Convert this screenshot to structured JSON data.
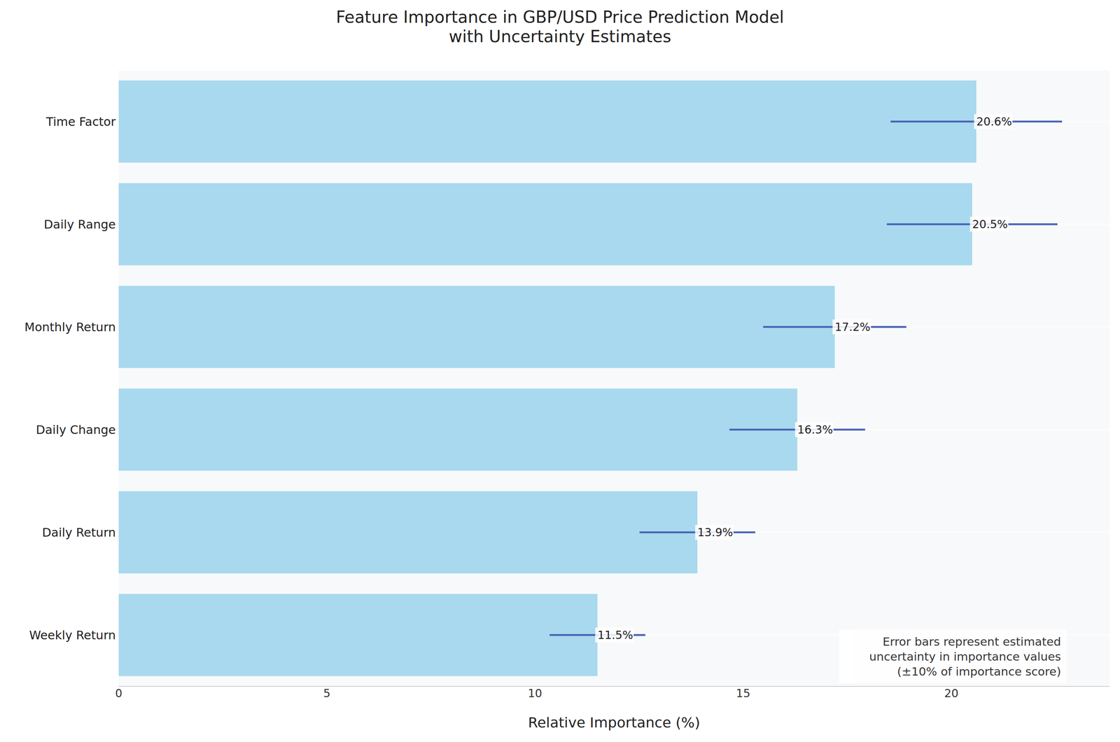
{
  "chart_data": {
    "type": "bar",
    "title": "Feature Importance in GBP/USD Price Prediction Model\nwith Uncertainty Estimates",
    "x_label": "Relative Importance (%)",
    "categories": [
      "Time Factor",
      "Daily Range",
      "Monthly Return",
      "Daily Change",
      "Daily Return",
      "Weekly Return"
    ],
    "values": [
      20.6,
      20.5,
      17.2,
      16.3,
      13.9,
      11.5
    ],
    "value_labels": [
      "20.6%",
      "20.5%",
      "17.2%",
      "16.3%",
      "13.9%",
      "11.5%"
    ],
    "errors": [
      2.06,
      2.05,
      1.72,
      1.63,
      1.39,
      1.15
    ],
    "color": "#a8d9ee",
    "error_color": "#4a64b8",
    "orientation": "horizontal",
    "data_labels": true,
    "xlim": [
      0,
      23.8
    ],
    "xticks": [
      0,
      5,
      10,
      15,
      20
    ],
    "grid": true,
    "annotation": "Error bars represent estimated\nuncertainty in importance values\n(±10% of importance score)"
  }
}
